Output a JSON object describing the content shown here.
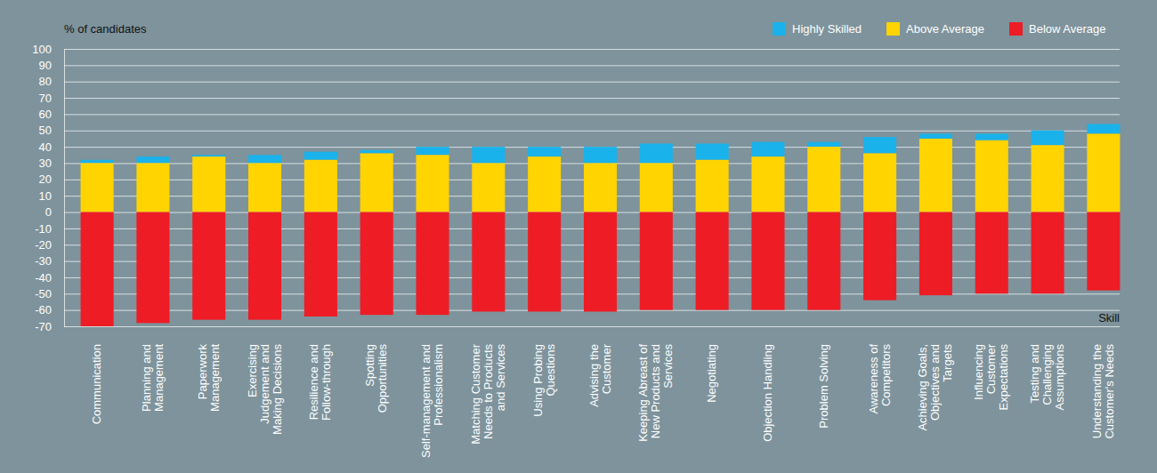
{
  "chart_data": {
    "type": "bar",
    "stacked": true,
    "grid": true,
    "legend": "top-right",
    "ylabel": "% of candidates",
    "xlabel": "Skill",
    "categories": [
      "Communication",
      "Planning and Management",
      "Paperwork Management",
      "Exercising Judgement and Making Decisions",
      "Resilience and Follow-through",
      "Spotting Opportunities",
      "Self-management and Professionalism",
      "Matching Customer Needs to Products and Services",
      "Using Probing Questions",
      "Advising the Customer",
      "Keeping Abreast of New Products and Services",
      "Negotiating",
      "Objection Handling",
      "Problem Solving",
      "Awareness of Competitors",
      "Achieving Goals, Objectives and Targets",
      "Influencing Customer Expectations",
      "Testing and Challenging Assumptions",
      "Understanding the Customer's Needs"
    ],
    "series": [
      {
        "name": "Highly Skilled",
        "color": "#1ab2ea",
        "values": [
          2,
          4,
          1,
          5,
          5,
          2,
          5,
          10,
          6,
          10,
          12,
          10,
          9,
          3,
          10,
          3,
          4,
          9,
          6
        ]
      },
      {
        "name": "Above Average",
        "color": "#ffd400",
        "values": [
          30,
          30,
          34,
          30,
          32,
          36,
          35,
          30,
          34,
          30,
          30,
          32,
          34,
          40,
          36,
          45,
          44,
          41,
          48
        ]
      },
      {
        "name": "Below Average",
        "color": "#ee1c25",
        "values": [
          -70,
          -68,
          -66,
          -66,
          -64,
          -63,
          -63,
          -61,
          -61,
          -61,
          -60,
          -60,
          -60,
          -60,
          -54,
          -51,
          -50,
          -50,
          -48
        ]
      }
    ],
    "ylim": [
      -70,
      100
    ],
    "yticks": [
      -70,
      -60,
      -50,
      -40,
      -30,
      -20,
      -10,
      0,
      10,
      20,
      30,
      40,
      50,
      60,
      70,
      80,
      90,
      100
    ]
  }
}
